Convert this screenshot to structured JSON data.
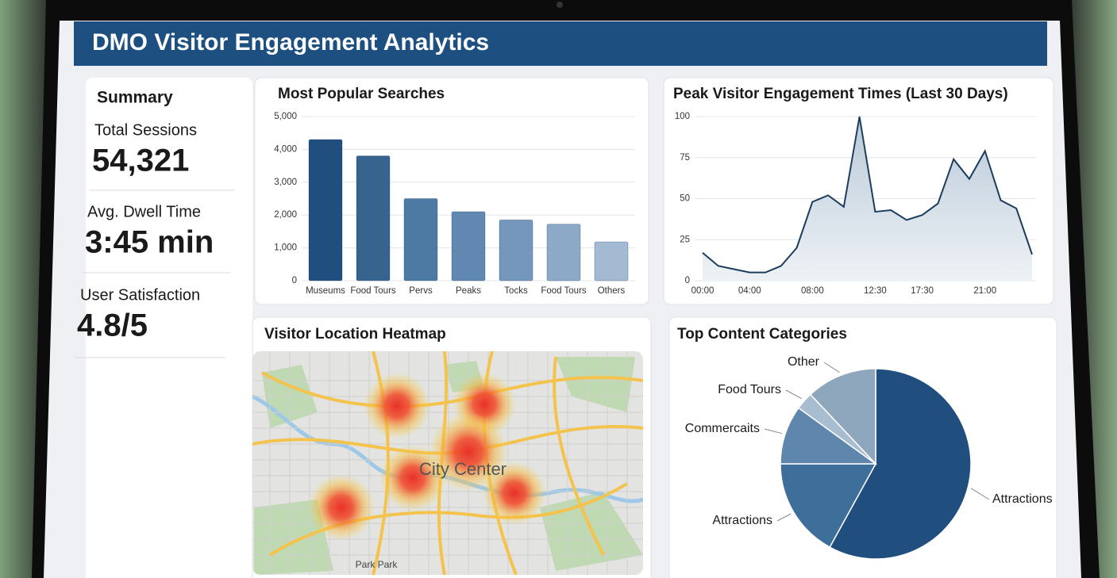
{
  "header": {
    "title": "DMO Visitor Engagement Analytics"
  },
  "summary": {
    "title": "Summary",
    "items": [
      {
        "label": "Total Sessions",
        "value": "54,321"
      },
      {
        "label": "Avg. Dwell Time",
        "value": "3:45 min"
      },
      {
        "label": "User Satisfaction",
        "value": "4.8/5"
      }
    ]
  },
  "chart_data": [
    {
      "type": "bar",
      "title": "Most Popular Searches",
      "categories": [
        "Museums",
        "Food Tours",
        "Pervs",
        "Peaks",
        "Tocks",
        "Food Tours",
        "Others"
      ],
      "values": [
        4300,
        3800,
        2500,
        2100,
        1850,
        1720,
        1180
      ],
      "colors": [
        "#1f4e7f",
        "#36648f",
        "#4d7aa3",
        "#6088b0",
        "#7497bb",
        "#8ca9c7",
        "#a3bad2"
      ],
      "ylim": [
        0,
        5000
      ],
      "yticks": [
        0,
        {
          "value": 1000,
          "label": "1,000"
        },
        {
          "value": 2000,
          "label": "2,000"
        },
        {
          "value": 3000,
          "label": "3,000"
        },
        {
          "value": 4000,
          "label": "4,000"
        },
        {
          "value": 5000,
          "label": "5,000"
        }
      ],
      "grid": true
    },
    {
      "type": "line",
      "title": "Peak Visitor Engagement Times (Last 30 Days)",
      "categories": [
        "00:00",
        null,
        null,
        "04:00",
        null,
        null,
        null,
        "08:00",
        null,
        null,
        null,
        "12:30",
        null,
        null,
        "17:30",
        null,
        null,
        null,
        "21:00",
        null,
        null,
        null
      ],
      "values": [
        17,
        9,
        7,
        5,
        5,
        9,
        20,
        48,
        52,
        45,
        100,
        42,
        43,
        37,
        40,
        47,
        74,
        62,
        79,
        49,
        44,
        16
      ],
      "color": "#1c3d5e",
      "ylim": [
        0,
        100
      ],
      "yticks": [
        0,
        25,
        50,
        75,
        100
      ],
      "grid": true
    },
    {
      "type": "pie",
      "title": "Top Content Categories",
      "categories": [
        "Attractions",
        "Attractions",
        "Commercaits",
        "Food Tours",
        "Other"
      ],
      "values": [
        58,
        17,
        10,
        3,
        12
      ],
      "colors": [
        "#1f4e7f",
        "#3e6e9a",
        "#5f86ad",
        "#a9bdd0",
        "#8fa7bd"
      ]
    }
  ],
  "heatmap": {
    "title": "Visitor Location Heatmap",
    "center_label": "City Center",
    "park_label": "Park Park"
  }
}
